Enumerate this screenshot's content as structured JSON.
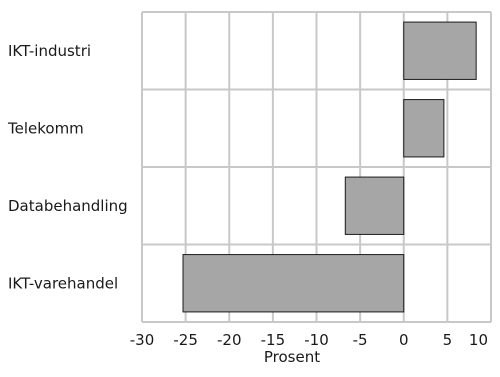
{
  "chart_data": {
    "type": "bar",
    "orientation": "horizontal",
    "categories": [
      "IKT-industri",
      "Telekomm",
      "Databehandling",
      "IKT-varehandel"
    ],
    "values": [
      8.3,
      4.6,
      -6.7,
      -25.3
    ],
    "xlabel": "Prosent",
    "ylabel": "",
    "xlim": [
      -30,
      10
    ],
    "xticks": [
      -30,
      -25,
      -20,
      -15,
      -10,
      -5,
      0,
      5,
      10
    ],
    "xtick_labels": [
      "-30",
      "-25",
      "-20",
      "-15",
      "-10",
      "-5",
      "0",
      "5",
      "10"
    ],
    "grid": true,
    "bar_color": "#a6a6a6",
    "bar_edge_color": "#1a1a1a",
    "grid_color": "#c8c8c8"
  }
}
